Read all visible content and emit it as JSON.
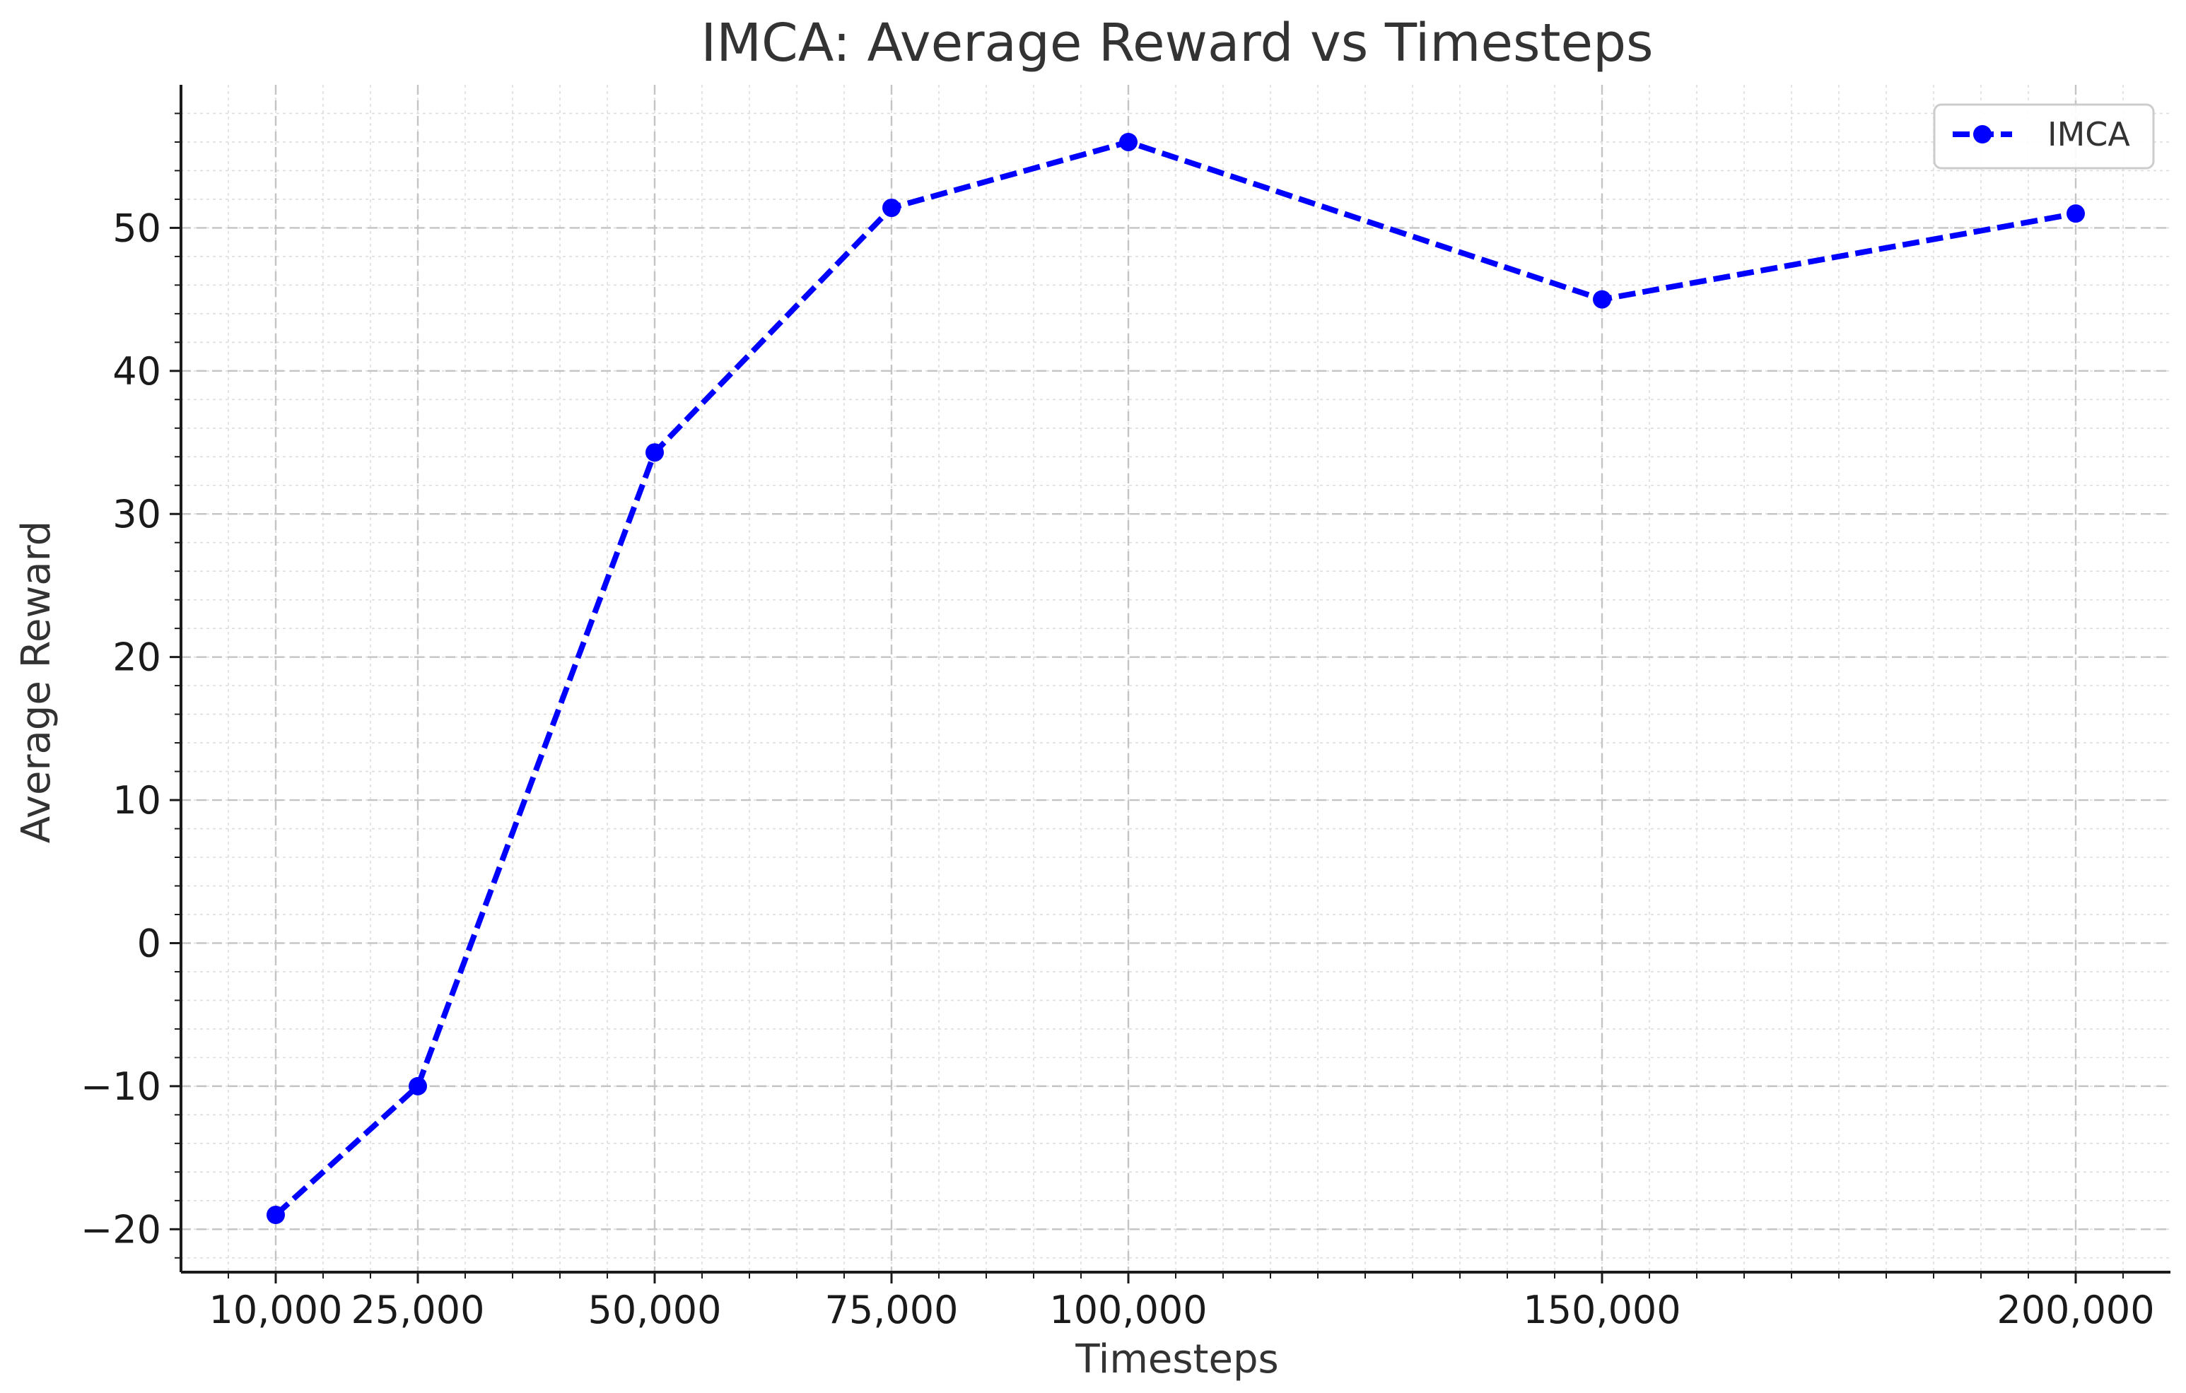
{
  "chart_data": {
    "type": "line",
    "title": "IMCA: Average Reward vs Timesteps",
    "xlabel": "Timesteps",
    "ylabel": "Average Reward",
    "x": [
      10000,
      25000,
      50000,
      75000,
      100000,
      150000,
      200000
    ],
    "x_tick_labels": [
      "10,000",
      "25,000",
      "50,000",
      "75,000",
      "100,000",
      "150,000",
      "200,000"
    ],
    "xlim": [
      0,
      210000
    ],
    "ylim": [
      -23,
      60
    ],
    "y_ticks": [
      -20,
      -10,
      0,
      10,
      20,
      30,
      40,
      50
    ],
    "y_tick_labels": [
      "−20",
      "−10",
      "0",
      "10",
      "20",
      "30",
      "40",
      "50"
    ],
    "series": [
      {
        "name": "IMCA",
        "values": [
          -19,
          -10,
          34.3,
          51.4,
          56,
          45,
          51
        ],
        "color": "#0000ff",
        "line_style": "dashed",
        "marker": "circle"
      }
    ],
    "grid": "on",
    "legend_position": "top-right"
  }
}
